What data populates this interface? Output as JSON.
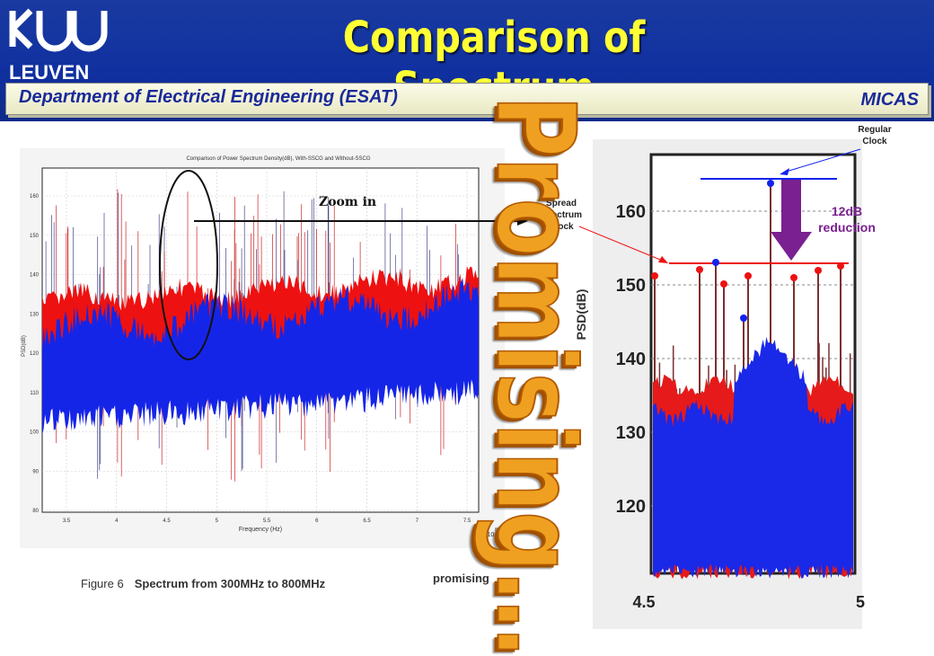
{
  "header": {
    "logo_text": "LEUVEN",
    "title": "Comparison of Spectrum",
    "department": "Department of Electrical Engineering (ESAT)",
    "group": "MICAS",
    "colors": {
      "banner": "#1030a0",
      "title": "#ffff33",
      "dept_text": "#1a2a9a"
    }
  },
  "left_plot": {
    "title": "Comparison of Power Spectrum Density(dB), With-SSCG and Without-SSCG",
    "xlabel": "Frequency (Hz)",
    "ylabel": "PSD(dB)",
    "x_ticks": [
      "3.5",
      "4",
      "4.5",
      "5",
      "5.5",
      "6",
      "6.5",
      "7",
      "7.5"
    ],
    "y_ticks": [
      "160",
      "150",
      "140",
      "130",
      "120",
      "110",
      "100",
      "90",
      "80"
    ],
    "x_multiplier": "x 10",
    "x_multiplier_exp": "8"
  },
  "right_plot": {
    "ylabel": "PSD(dB)",
    "y_ticks": [
      "160",
      "150",
      "140",
      "130",
      "120"
    ],
    "x_ticks": [
      "4.5",
      "5"
    ]
  },
  "annotations": {
    "zoom": "Zoom in",
    "spread_spectrum": [
      "Spread",
      "Spectrum",
      "Clock"
    ],
    "regular_clock": [
      "Regular",
      "Clock"
    ],
    "reduction": [
      "12dB",
      "reduction"
    ],
    "promising_big": "Promising…",
    "promising_small": "promising",
    "figure_label": "Figure 6",
    "figure_caption": "Spectrum from 300MHz to 800MHz"
  },
  "colors": {
    "ssc": "#ee1111",
    "regular": "#1122ee",
    "arrow": "#7a2090",
    "promising": "#f0a020"
  }
}
